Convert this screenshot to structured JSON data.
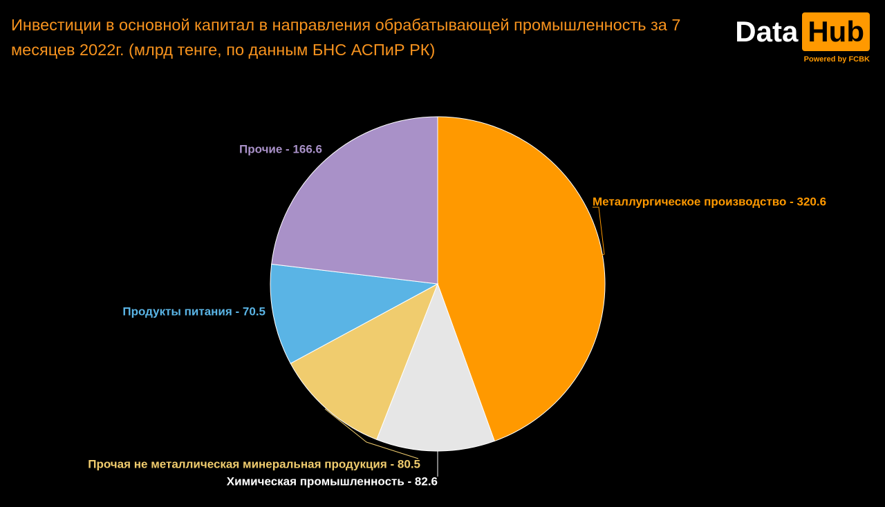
{
  "chart_data": {
    "type": "pie",
    "title": "Инвестиции в основной капитал в направления обрабатывающей промышленность за 7 месяцев 2022г. (млрд тенге, по данным БНС АСПиР РК)",
    "values": [
      320.6,
      82.6,
      80.5,
      70.5,
      166.6
    ],
    "value_labels": [
      "Металлургическое производство - 320.6",
      "Химическая промышленность - 82.6",
      "Прочая не металлическая минеральная продукция - 80.5",
      "Продукты питания - 70.5",
      "Прочие - 166.6"
    ],
    "colors": [
      "#ff9900",
      "#e6e6e6",
      "#f0cc6e",
      "#5ab4e5",
      "#a991c8"
    ],
    "label_colors": [
      "#ff9900",
      "#ffffff",
      "#f0cc6e",
      "#5ab4e5",
      "#a991c8"
    ]
  },
  "logo": {
    "left": "Data",
    "right": "Hub",
    "tagline": "Powered by FCBK"
  }
}
